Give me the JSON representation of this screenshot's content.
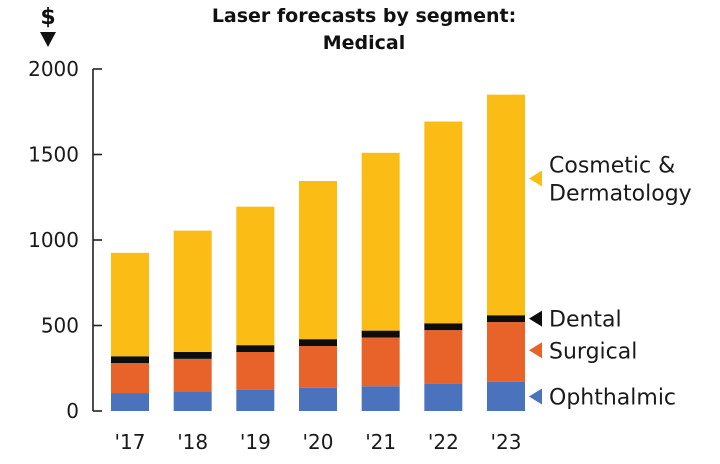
{
  "chart_data": {
    "type": "bar",
    "stacked": true,
    "title_lines": [
      "Laser forecasts by segment:",
      "Medical"
    ],
    "unit_label": "$",
    "categories": [
      "'17",
      "'18",
      "'19",
      "'20",
      "'21",
      "'22",
      "'23"
    ],
    "ylim": [
      0,
      2000
    ],
    "yticks": [
      0,
      500,
      1000,
      1500,
      2000
    ],
    "ytick_labels": [
      "0",
      "500",
      "1000",
      "1500",
      "2000"
    ],
    "series": [
      {
        "name": "Ophthalmic",
        "color": "#4a72bd",
        "values": [
          105,
          115,
          125,
          135,
          145,
          158,
          170
        ]
      },
      {
        "name": "Surgical",
        "color": "#e8632a",
        "values": [
          175,
          190,
          220,
          245,
          285,
          315,
          350
        ]
      },
      {
        "name": "Dental",
        "color": "#0d0d0d",
        "values": [
          40,
          40,
          40,
          40,
          40,
          40,
          40
        ]
      },
      {
        "name": "Cosmetic & Dermatology",
        "color": "#fbbd15",
        "values": [
          605,
          710,
          810,
          925,
          1040,
          1180,
          1290
        ]
      }
    ],
    "legend": [
      {
        "series": "Cosmetic & Dermatology",
        "lines": [
          "Cosmetic &",
          "Dermatology"
        ]
      },
      {
        "series": "Dental",
        "lines": [
          "Dental"
        ]
      },
      {
        "series": "Surgical",
        "lines": [
          "Surgical"
        ]
      },
      {
        "series": "Ophthalmic",
        "lines": [
          "Ophthalmic"
        ]
      }
    ]
  }
}
